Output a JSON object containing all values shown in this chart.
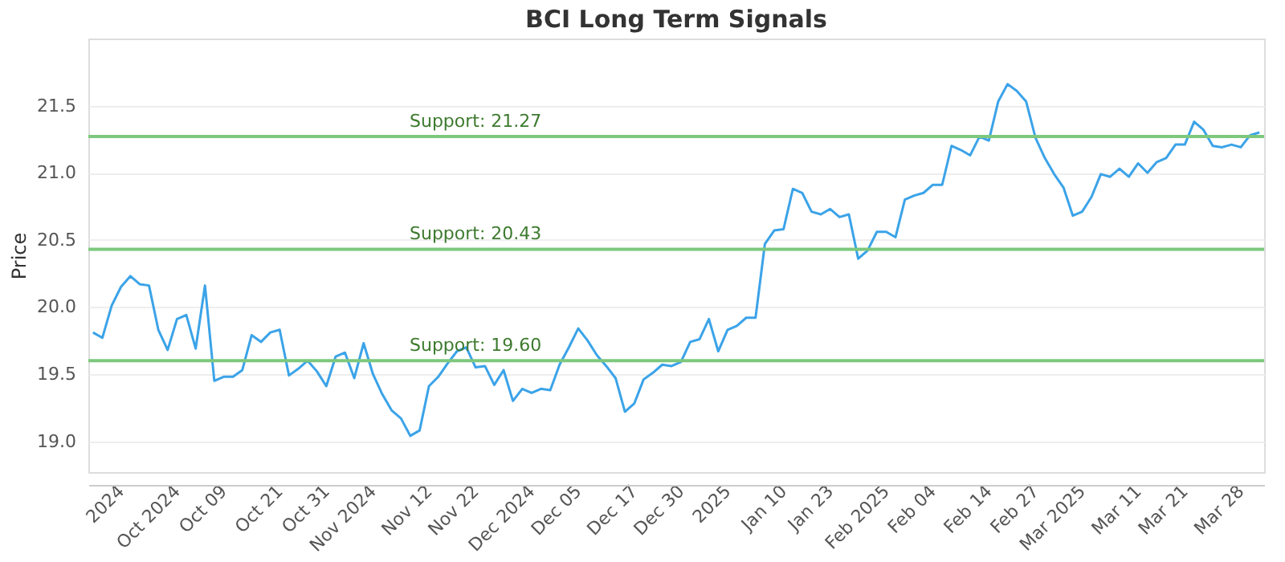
{
  "chart_data": {
    "type": "line",
    "title": "BCI Long Term Signals",
    "ylabel": "Price",
    "categories": [
      null,
      null,
      null,
      "2024",
      null,
      null,
      null,
      null,
      null,
      "Oct 2024",
      null,
      null,
      null,
      null,
      "Oct 09",
      null,
      null,
      null,
      null,
      null,
      "Oct 21",
      null,
      null,
      null,
      null,
      "Oct 31",
      null,
      null,
      null,
      null,
      "Nov 2024",
      null,
      null,
      null,
      null,
      null,
      "Nov 12",
      null,
      null,
      null,
      null,
      "Nov 22",
      null,
      null,
      null,
      null,
      null,
      "Dec 2024",
      null,
      null,
      null,
      null,
      "Dec 05",
      null,
      null,
      null,
      null,
      null,
      "Dec 17",
      null,
      null,
      null,
      null,
      "Dec 30",
      null,
      null,
      null,
      null,
      "2025",
      null,
      null,
      null,
      null,
      null,
      "Jan 10",
      null,
      null,
      null,
      null,
      "Jan 23",
      null,
      null,
      null,
      null,
      null,
      "Feb 2025",
      null,
      null,
      null,
      null,
      "Feb 04",
      null,
      null,
      null,
      null,
      null,
      "Feb 14",
      null,
      null,
      null,
      null,
      "Feb 27",
      null,
      null,
      null,
      null,
      "Mar 2025",
      null,
      null,
      null,
      null,
      null,
      "Mar 11",
      null,
      null,
      null,
      null,
      "Mar 21",
      null,
      null,
      null,
      null,
      null,
      "Mar 28",
      null,
      null
    ],
    "series": [
      {
        "color": "#3ba3e8",
        "values": [
          19.81,
          19.77,
          20.01,
          20.15,
          20.23,
          20.17,
          20.16,
          19.83,
          19.68,
          19.91,
          19.94,
          19.69,
          20.16,
          19.45,
          19.48,
          19.48,
          19.53,
          19.79,
          19.74,
          19.81,
          19.83,
          19.49,
          19.54,
          19.6,
          19.52,
          19.41,
          19.63,
          19.66,
          19.47,
          19.73,
          19.5,
          19.35,
          19.23,
          19.17,
          19.04,
          19.08,
          19.41,
          19.48,
          19.58,
          19.67,
          19.7,
          19.55,
          19.56,
          19.42,
          19.53,
          19.3,
          19.39,
          19.36,
          19.39,
          19.38,
          19.57,
          19.7,
          19.84,
          19.75,
          19.64,
          19.56,
          19.47,
          19.22,
          19.28,
          19.46,
          19.51,
          19.57,
          19.56,
          19.59,
          19.74,
          19.76,
          19.91,
          19.67,
          19.83,
          19.86,
          19.92,
          19.92,
          20.47,
          20.57,
          20.58,
          20.88,
          20.85,
          20.71,
          20.69,
          20.73,
          20.67,
          20.69,
          20.36,
          20.42,
          20.56,
          20.56,
          20.52,
          20.8,
          20.83,
          20.85,
          20.91,
          20.91,
          21.2,
          21.17,
          21.13,
          21.27,
          21.24,
          21.53,
          21.66,
          21.61,
          21.53,
          21.26,
          21.11,
          20.99,
          20.89,
          20.68,
          20.71,
          20.82,
          20.99,
          20.97,
          21.03,
          20.97,
          21.07,
          21.0,
          21.08,
          21.11,
          21.21,
          21.21,
          21.38,
          21.32,
          21.2,
          21.19,
          21.21,
          21.19,
          21.28,
          21.3
        ]
      }
    ],
    "ylim": [
      18.77,
      22.0
    ],
    "yticks": [
      {
        "value": 19.0,
        "label": "19.0"
      },
      {
        "value": 19.5,
        "label": "19.5"
      },
      {
        "value": 20.0,
        "label": "20.0"
      },
      {
        "value": 20.5,
        "label": "20.5"
      },
      {
        "value": 21.0,
        "label": "21.0"
      },
      {
        "value": 21.5,
        "label": "21.5"
      }
    ],
    "grid": "y",
    "legend": false,
    "marker": "none",
    "line_style": "solid",
    "ref_lines": [
      {
        "axis": "y",
        "value": 21.27,
        "label": "Support: 21.27",
        "color": "#7dc87d"
      },
      {
        "axis": "y",
        "value": 20.43,
        "label": "Support: 20.43",
        "color": "#7dc87d"
      },
      {
        "axis": "y",
        "value": 19.6,
        "label": "Support: 19.60",
        "color": "#7dc87d"
      }
    ]
  }
}
